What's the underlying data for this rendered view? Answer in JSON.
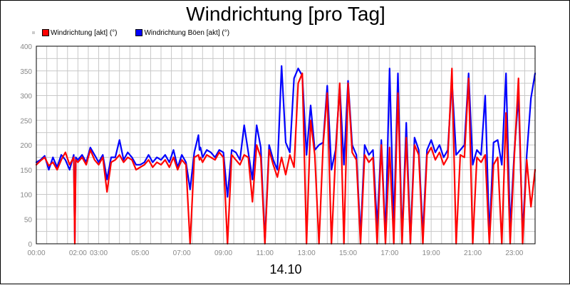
{
  "title": "Windrichtung [pro Tag]",
  "date_label": "14.10",
  "colors": {
    "series1": "#ff0000",
    "series2": "#0000ff",
    "grid": "#c8c8c8"
  },
  "chart_data": {
    "type": "line",
    "title": "Windrichtung [pro Tag]",
    "xlabel": "14.10",
    "ylabel": "",
    "xlim": [
      0,
      24
    ],
    "ylim": [
      0,
      400
    ],
    "y_ticks": [
      0,
      50,
      100,
      150,
      200,
      250,
      300,
      350,
      400
    ],
    "x_ticks": [
      {
        "t": 0,
        "label": "00:00"
      },
      {
        "t": 2,
        "label": "02:00"
      },
      {
        "t": 3,
        "label": "03:00"
      },
      {
        "t": 5,
        "label": "05:00"
      },
      {
        "t": 7,
        "label": "07:00"
      },
      {
        "t": 9,
        "label": "09:00"
      },
      {
        "t": 11,
        "label": "11:00"
      },
      {
        "t": 13,
        "label": "13:00"
      },
      {
        "t": 15,
        "label": "15:00"
      },
      {
        "t": 17,
        "label": "17:00"
      },
      {
        "t": 19,
        "label": "19:00"
      },
      {
        "t": 21,
        "label": "21:00"
      },
      {
        "t": 23,
        "label": "23:00"
      }
    ],
    "grid": true,
    "legend_position": "top-left",
    "series": [
      {
        "name": "Windrichtung [akt] (°)",
        "color": "#ff0000",
        "x": [
          0,
          0.2,
          0.4,
          0.6,
          0.8,
          1.0,
          1.2,
          1.4,
          1.6,
          1.8,
          1.85,
          1.9,
          2.0,
          2.2,
          2.4,
          2.6,
          2.8,
          3.0,
          3.2,
          3.4,
          3.6,
          3.8,
          4.0,
          4.2,
          4.4,
          4.6,
          4.8,
          5.0,
          5.2,
          5.4,
          5.6,
          5.8,
          6.0,
          6.2,
          6.4,
          6.6,
          6.8,
          7.0,
          7.2,
          7.4,
          7.6,
          7.8,
          7.85,
          7.9,
          8.0,
          8.2,
          8.4,
          8.6,
          8.8,
          9.0,
          9.2,
          9.4,
          9.6,
          9.8,
          10.0,
          10.2,
          10.4,
          10.6,
          10.8,
          11.0,
          11.2,
          11.4,
          11.6,
          11.8,
          12.0,
          12.2,
          12.4,
          12.6,
          12.8,
          13.0,
          13.2,
          13.4,
          13.6,
          13.8,
          14.0,
          14.2,
          14.4,
          14.6,
          14.8,
          15.0,
          15.2,
          15.4,
          15.6,
          15.8,
          16.0,
          16.2,
          16.4,
          16.6,
          16.8,
          17.0,
          17.2,
          17.4,
          17.6,
          17.8,
          18.0,
          18.2,
          18.4,
          18.6,
          18.8,
          19.0,
          19.2,
          19.4,
          19.6,
          19.8,
          20.0,
          20.2,
          20.4,
          20.6,
          20.8,
          21.0,
          21.2,
          21.4,
          21.6,
          21.8,
          22.0,
          22.2,
          22.4,
          22.6,
          22.8,
          23.0,
          23.2,
          23.4,
          23.6,
          23.8,
          24.0
        ],
        "y": [
          160,
          168,
          175,
          158,
          165,
          150,
          170,
          185,
          160,
          175,
          0,
          170,
          165,
          175,
          160,
          190,
          170,
          160,
          175,
          105,
          165,
          170,
          180,
          165,
          175,
          170,
          150,
          155,
          160,
          170,
          155,
          165,
          160,
          170,
          155,
          175,
          150,
          170,
          160,
          0,
          175,
          180,
          170,
          175,
          165,
          180,
          175,
          170,
          185,
          175,
          0,
          180,
          170,
          160,
          180,
          175,
          85,
          200,
          175,
          0,
          190,
          160,
          135,
          175,
          140,
          180,
          155,
          325,
          345,
          0,
          250,
          180,
          0,
          200,
          305,
          0,
          180,
          325,
          0,
          325,
          185,
          170,
          0,
          180,
          165,
          175,
          0,
          200,
          0,
          195,
          0,
          305,
          0,
          215,
          0,
          200,
          180,
          0,
          180,
          195,
          170,
          185,
          160,
          175,
          355,
          0,
          180,
          175,
          335,
          0,
          175,
          165,
          180,
          0,
          160,
          175,
          0,
          265,
          0,
          175,
          335,
          0,
          170,
          75,
          150
        ]
      },
      {
        "name": "Windrichtung Böen [akt] (°)",
        "color": "#0000ff",
        "x": [
          0,
          0.2,
          0.4,
          0.6,
          0.8,
          1.0,
          1.2,
          1.4,
          1.6,
          1.8,
          1.85,
          1.9,
          2.0,
          2.2,
          2.4,
          2.6,
          2.8,
          3.0,
          3.2,
          3.4,
          3.6,
          3.8,
          4.0,
          4.2,
          4.4,
          4.6,
          4.8,
          5.0,
          5.2,
          5.4,
          5.6,
          5.8,
          6.0,
          6.2,
          6.4,
          6.6,
          6.8,
          7.0,
          7.2,
          7.4,
          7.6,
          7.8,
          7.85,
          7.9,
          8.0,
          8.2,
          8.4,
          8.6,
          8.8,
          9.0,
          9.2,
          9.4,
          9.6,
          9.8,
          10.0,
          10.2,
          10.4,
          10.6,
          10.8,
          11.0,
          11.2,
          11.4,
          11.6,
          11.8,
          12.0,
          12.2,
          12.4,
          12.6,
          12.8,
          13.0,
          13.2,
          13.4,
          13.6,
          13.8,
          14.0,
          14.2,
          14.4,
          14.6,
          14.8,
          15.0,
          15.2,
          15.4,
          15.6,
          15.8,
          16.0,
          16.2,
          16.4,
          16.6,
          16.8,
          17.0,
          17.2,
          17.4,
          17.6,
          17.8,
          18.0,
          18.2,
          18.4,
          18.6,
          18.8,
          19.0,
          19.2,
          19.4,
          19.6,
          19.8,
          20.0,
          20.2,
          20.4,
          20.6,
          20.8,
          21.0,
          21.2,
          21.4,
          21.6,
          21.8,
          22.0,
          22.2,
          22.4,
          22.6,
          22.8,
          23.0,
          23.2,
          23.4,
          23.6,
          23.8,
          24.0
        ],
        "y": [
          165,
          170,
          178,
          150,
          175,
          155,
          180,
          170,
          150,
          180,
          5,
          175,
          170,
          180,
          165,
          195,
          180,
          165,
          180,
          130,
          175,
          175,
          210,
          170,
          185,
          175,
          160,
          160,
          165,
          180,
          165,
          175,
          170,
          180,
          165,
          190,
          155,
          180,
          165,
          110,
          185,
          220,
          190,
          195,
          175,
          190,
          185,
          175,
          190,
          185,
          95,
          190,
          185,
          170,
          240,
          185,
          130,
          240,
          195,
          5,
          200,
          170,
          150,
          360,
          205,
          185,
          335,
          355,
          340,
          180,
          280,
          190,
          200,
          205,
          320,
          150,
          190,
          320,
          160,
          330,
          200,
          180,
          15,
          200,
          180,
          190,
          35,
          210,
          15,
          355,
          35,
          345,
          10,
          245,
          5,
          215,
          190,
          20,
          190,
          210,
          185,
          200,
          175,
          190,
          330,
          180,
          190,
          200,
          345,
          160,
          190,
          180,
          300,
          15,
          205,
          210,
          160,
          345,
          30,
          185,
          300,
          20,
          180,
          295,
          345
        ]
      }
    ]
  }
}
